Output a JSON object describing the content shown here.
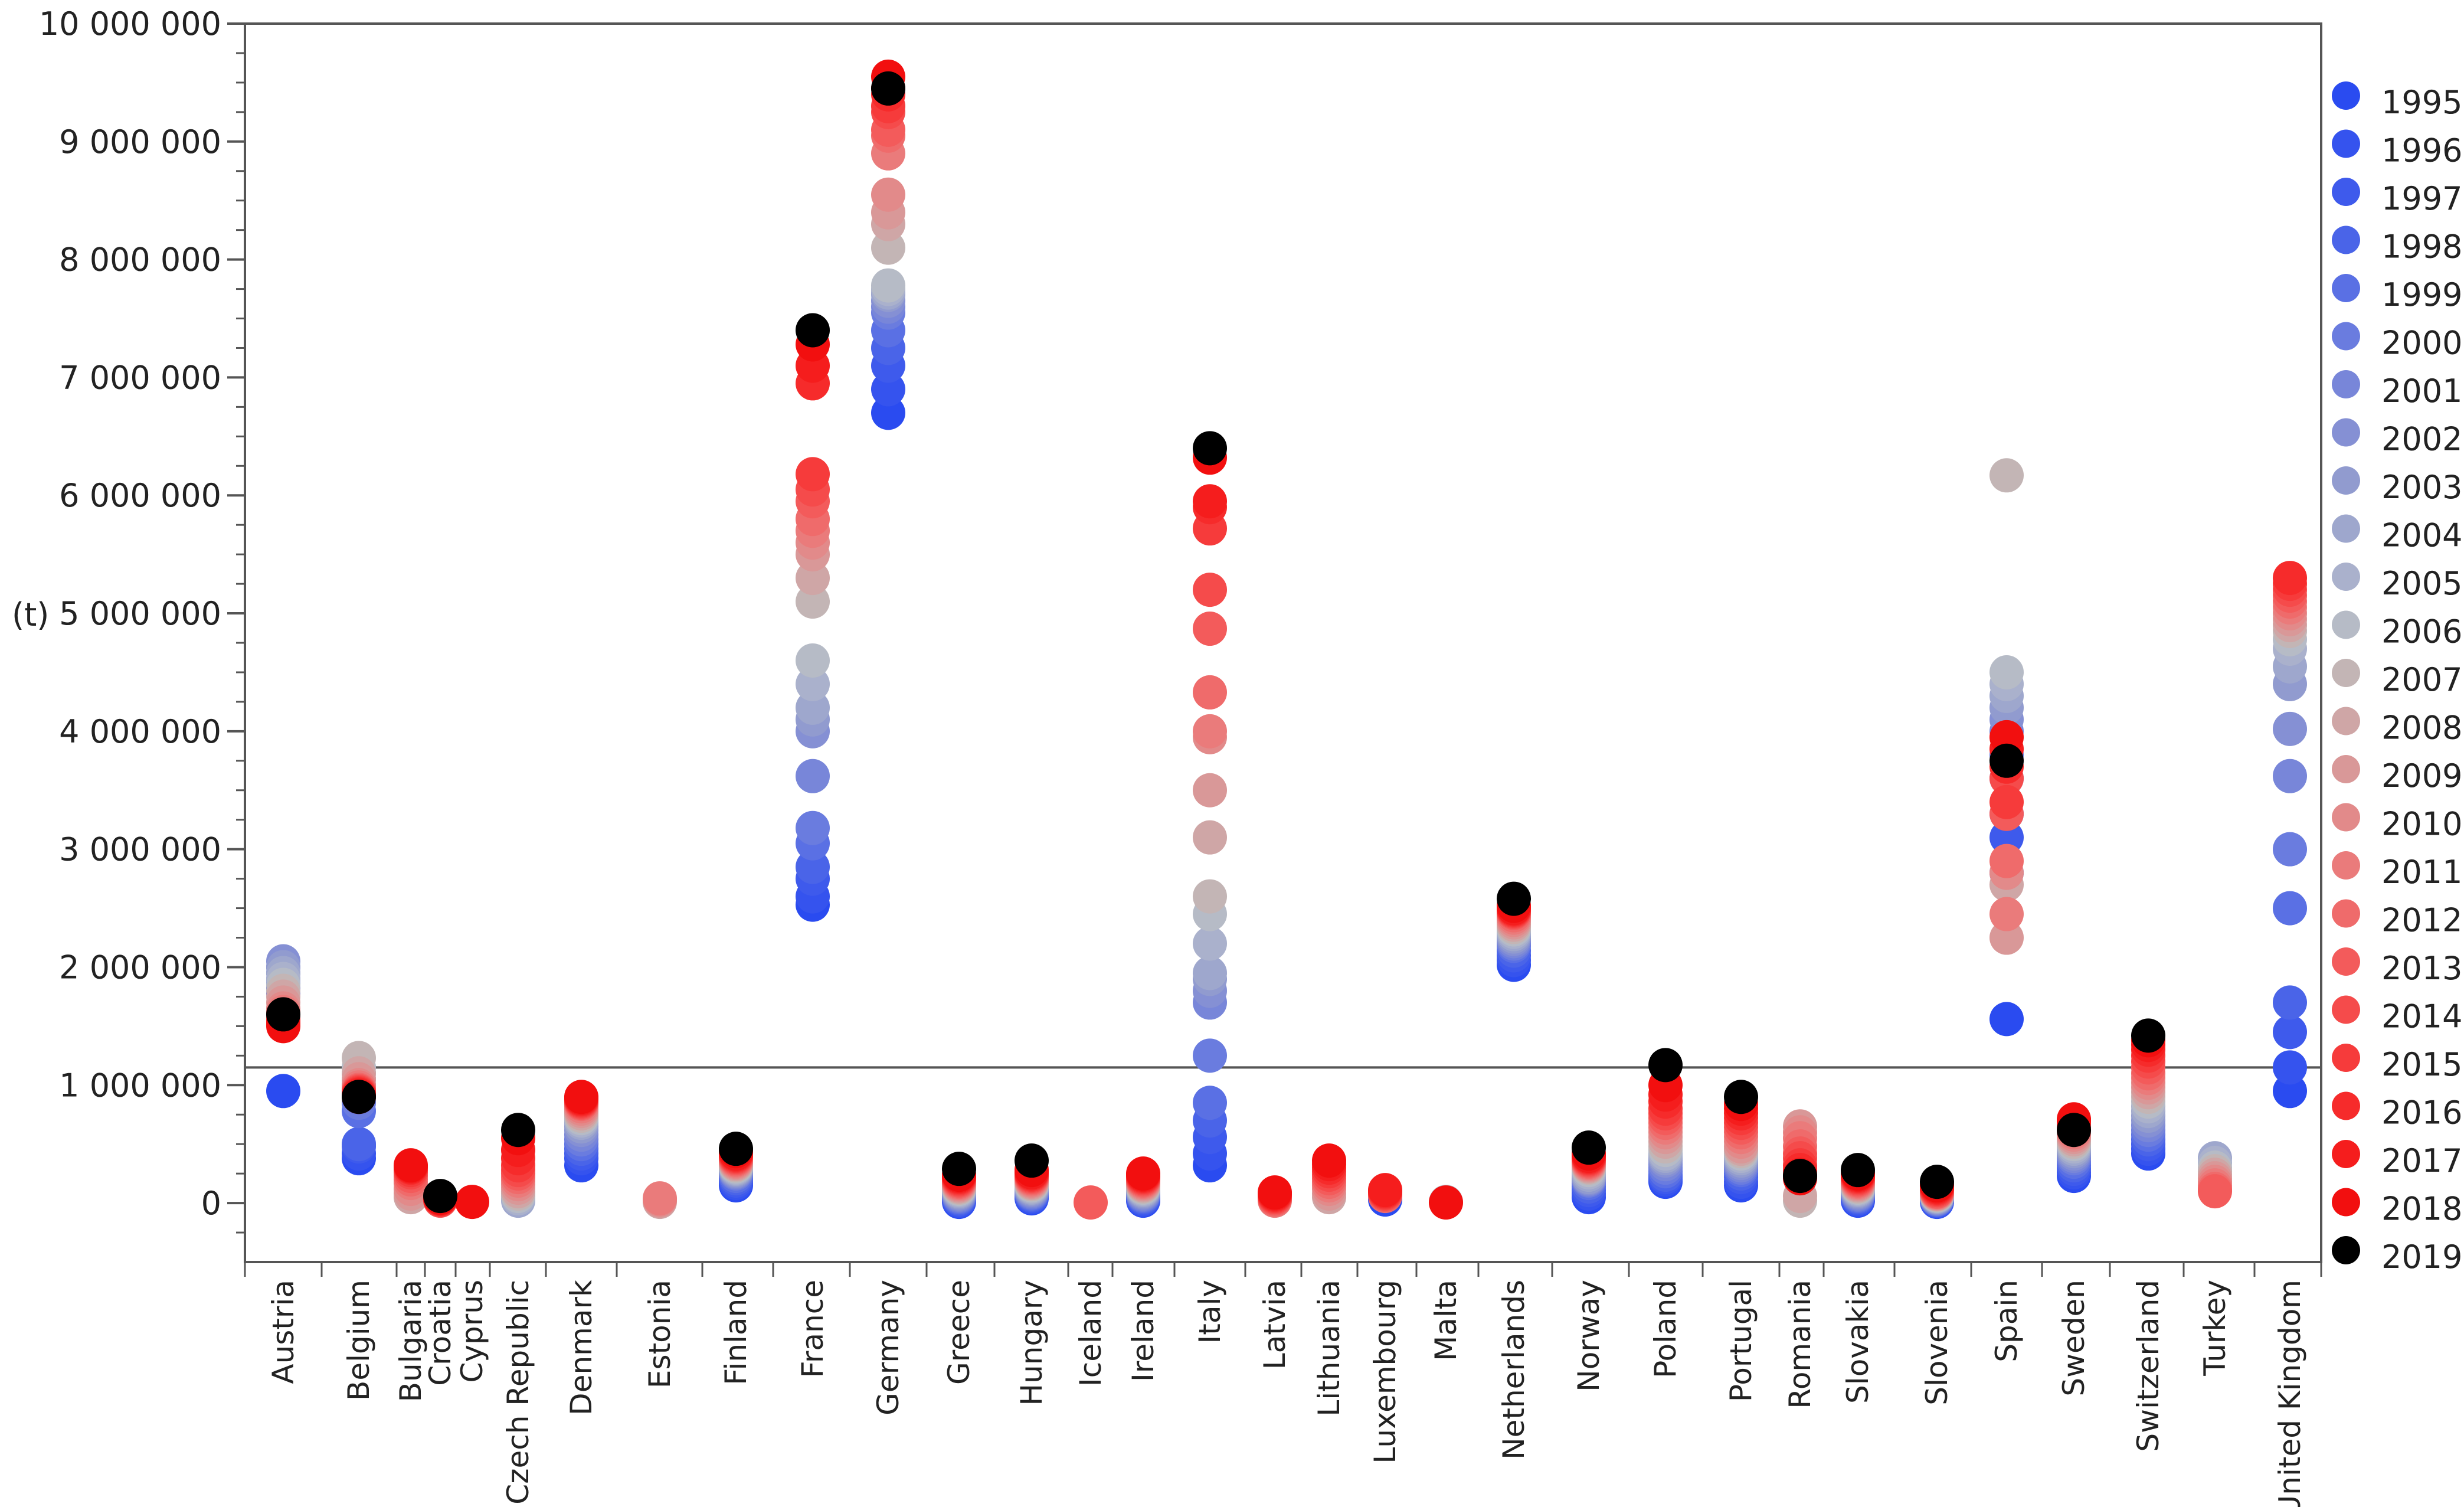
{
  "chart_data": {
    "type": "scatter",
    "title": "",
    "ylabel": "(t)",
    "xlabel": "",
    "ylim": [
      -500000,
      10000000
    ],
    "y_tick_labels": [
      "10 000 000",
      "9 000 000",
      "8 000 000",
      "7 000 000",
      "6 000 000",
      "5 000 000",
      "4 000 000",
      "3 000 000",
      "2 000 000",
      "1 000 000",
      "0"
    ],
    "y_ticks": [
      10000000,
      9000000,
      8000000,
      7000000,
      6000000,
      5000000,
      4000000,
      3000000,
      2000000,
      1000000,
      0
    ],
    "reference_line": 1150000,
    "legend_position": "right",
    "years": [
      "1995",
      "1996",
      "1997",
      "1998",
      "1999",
      "2000",
      "2001",
      "2002",
      "2003",
      "2004",
      "2005",
      "2006",
      "2007",
      "2008",
      "2009",
      "2010",
      "2011",
      "2012",
      "2013",
      "2014",
      "2015",
      "2016",
      "2017",
      "2018",
      "2019"
    ],
    "year_colors": [
      "#2a4bf0",
      "#3553ee",
      "#3e5aec",
      "#4a64e8",
      "#5a70e4",
      "#6a7cdf",
      "#7886d9",
      "#8590d4",
      "#919bcf",
      "#9ea7cd",
      "#aab1cc",
      "#b6bbc6",
      "#c3b5b5",
      "#cfa6a6",
      "#d99898",
      "#e28a8a",
      "#ea7b7b",
      "#ef6b6b",
      "#f35b5b",
      "#f54b4b",
      "#f63b3b",
      "#f62b2b",
      "#f51d1d",
      "#f20f0f",
      "#000000"
    ],
    "categories": [
      {
        "name": "Austria",
        "values": [
          950000,
          1780000,
          1820000,
          1860000,
          1900000,
          1950000,
          2000000,
          2050000,
          2000000,
          1950000,
          1900000,
          1850000,
          1800000,
          1750000,
          1700000,
          1650000,
          1620000,
          1600000,
          1580000,
          1560000,
          1550000,
          1540000,
          1520000,
          1500000,
          1600000
        ]
      },
      {
        "name": "Belgium",
        "values": [
          380000,
          420000,
          480000,
          500000,
          780000,
          850000,
          900000,
          950000,
          1000000,
          1050000,
          1100000,
          1150000,
          1230000,
          1100000,
          1050000,
          1000000,
          980000,
          960000,
          950000,
          940000,
          930000,
          920000,
          910000,
          900000,
          900000
        ]
      },
      {
        "name": "Bulgaria",
        "values": [
          null,
          null,
          null,
          null,
          null,
          null,
          null,
          null,
          null,
          null,
          null,
          null,
          null,
          50000,
          80000,
          120000,
          170000,
          200000,
          230000,
          260000,
          280000,
          300000,
          310000,
          320000,
          null
        ]
      },
      {
        "name": "Croatia",
        "values": [
          null,
          null,
          null,
          null,
          null,
          null,
          null,
          null,
          null,
          null,
          null,
          null,
          null,
          null,
          null,
          null,
          null,
          null,
          20000,
          25000,
          30000,
          35000,
          40000,
          45000,
          60000
        ]
      },
      {
        "name": "Cyprus",
        "values": [
          null,
          null,
          null,
          null,
          null,
          null,
          null,
          null,
          null,
          null,
          null,
          null,
          null,
          null,
          null,
          null,
          null,
          null,
          null,
          null,
          null,
          null,
          null,
          10000,
          null
        ]
      },
      {
        "name": "Czech Republic",
        "values": [
          null,
          null,
          null,
          null,
          null,
          null,
          null,
          null,
          null,
          20000,
          40000,
          60000,
          80000,
          100000,
          130000,
          160000,
          190000,
          220000,
          250000,
          280000,
          320000,
          380000,
          450000,
          550000,
          620000
        ]
      },
      {
        "name": "Denmark",
        "values": [
          320000,
          380000,
          420000,
          460000,
          500000,
          540000,
          580000,
          620000,
          650000,
          680000,
          700000,
          720000,
          740000,
          760000,
          780000,
          800000,
          820000,
          840000,
          850000,
          860000,
          870000,
          880000,
          890000,
          900000,
          null
        ]
      },
      {
        "name": "Estonia",
        "values": [
          null,
          null,
          null,
          null,
          null,
          null,
          null,
          null,
          null,
          null,
          null,
          null,
          null,
          10000,
          20000,
          30000,
          40000,
          null,
          null,
          null,
          null,
          null,
          null,
          null,
          null
        ]
      },
      {
        "name": "Finland",
        "values": [
          150000,
          170000,
          190000,
          210000,
          230000,
          250000,
          260000,
          270000,
          280000,
          290000,
          300000,
          310000,
          320000,
          330000,
          340000,
          350000,
          360000,
          370000,
          380000,
          390000,
          400000,
          410000,
          420000,
          440000,
          460000
        ]
      },
      {
        "name": "France",
        "values": [
          2530000,
          2600000,
          2750000,
          2850000,
          3050000,
          3180000,
          3620000,
          4000000,
          4100000,
          4200000,
          4400000,
          4600000,
          5100000,
          5300000,
          5500000,
          5600000,
          5700000,
          5800000,
          5950000,
          6050000,
          6180000,
          6950000,
          7100000,
          7280000,
          7400000
        ]
      },
      {
        "name": "Germany",
        "values": [
          6700000,
          6900000,
          7100000,
          7250000,
          7400000,
          7550000,
          7600000,
          7650000,
          7700000,
          7720000,
          7750000,
          7780000,
          8100000,
          8300000,
          8400000,
          8550000,
          8900000,
          9050000,
          9100000,
          9250000,
          9300000,
          9400000,
          9450000,
          9550000,
          9450000
        ]
      },
      {
        "name": "Greece",
        "values": [
          10000,
          20000,
          30000,
          40000,
          50000,
          60000,
          70000,
          80000,
          90000,
          100000,
          110000,
          120000,
          130000,
          140000,
          150000,
          160000,
          170000,
          180000,
          190000,
          200000,
          210000,
          220000,
          230000,
          240000,
          290000
        ]
      },
      {
        "name": "Hungary",
        "values": [
          40000,
          50000,
          60000,
          70000,
          80000,
          90000,
          100000,
          110000,
          120000,
          130000,
          140000,
          150000,
          160000,
          170000,
          180000,
          190000,
          200000,
          210000,
          220000,
          230000,
          240000,
          250000,
          260000,
          280000,
          360000
        ]
      },
      {
        "name": "Iceland",
        "values": [
          null,
          null,
          null,
          null,
          null,
          null,
          null,
          null,
          null,
          null,
          null,
          null,
          null,
          null,
          null,
          null,
          null,
          null,
          5000,
          null,
          null,
          null,
          null,
          null,
          null
        ]
      },
      {
        "name": "Ireland",
        "values": [
          20000,
          30000,
          40000,
          50000,
          60000,
          70000,
          80000,
          90000,
          100000,
          110000,
          120000,
          130000,
          140000,
          150000,
          160000,
          170000,
          180000,
          190000,
          200000,
          210000,
          220000,
          230000,
          240000,
          250000,
          null
        ]
      },
      {
        "name": "Italy",
        "values": [
          320000,
          420000,
          560000,
          700000,
          850000,
          1250000,
          1700000,
          1800000,
          1900000,
          1950000,
          2200000,
          2450000,
          2600000,
          3100000,
          3500000,
          3950000,
          4000000,
          4330000,
          4870000,
          5200000,
          5720000,
          5900000,
          5950000,
          6320000,
          6400000
        ]
      },
      {
        "name": "Latvia",
        "values": [
          null,
          null,
          null,
          null,
          null,
          null,
          null,
          null,
          null,
          null,
          null,
          null,
          null,
          null,
          null,
          null,
          20000,
          30000,
          40000,
          50000,
          60000,
          70000,
          80000,
          90000,
          null
        ]
      },
      {
        "name": "Lithuania",
        "values": [
          null,
          null,
          null,
          null,
          null,
          null,
          null,
          null,
          null,
          null,
          null,
          null,
          null,
          50000,
          80000,
          120000,
          150000,
          180000,
          210000,
          240000,
          270000,
          300000,
          330000,
          360000,
          null
        ]
      },
      {
        "name": "Luxembourg",
        "values": [
          30000,
          null,
          null,
          null,
          null,
          null,
          null,
          null,
          null,
          null,
          null,
          null,
          null,
          null,
          null,
          null,
          null,
          60000,
          70000,
          80000,
          90000,
          100000,
          110000,
          null,
          null
        ]
      },
      {
        "name": "Malta",
        "values": [
          null,
          null,
          null,
          null,
          null,
          null,
          null,
          null,
          null,
          null,
          null,
          10000,
          null,
          null,
          null,
          null,
          null,
          null,
          null,
          null,
          null,
          null,
          null,
          5000,
          null
        ]
      },
      {
        "name": "Netherlands",
        "values": [
          2020000,
          2060000,
          2100000,
          2140000,
          2180000,
          2200000,
          2220000,
          2240000,
          2260000,
          2280000,
          2300000,
          2320000,
          2340000,
          2360000,
          2380000,
          2400000,
          2420000,
          2440000,
          2460000,
          2470000,
          2480000,
          2490000,
          2500000,
          2520000,
          2580000
        ]
      },
      {
        "name": "Norway",
        "values": [
          50000,
          80000,
          110000,
          140000,
          170000,
          190000,
          200000,
          210000,
          220000,
          240000,
          260000,
          280000,
          300000,
          310000,
          320000,
          330000,
          340000,
          350000,
          360000,
          370000,
          380000,
          390000,
          400000,
          420000,
          470000
        ]
      },
      {
        "name": "Poland",
        "values": [
          180000,
          200000,
          220000,
          240000,
          270000,
          300000,
          330000,
          360000,
          380000,
          400000,
          420000,
          450000,
          480000,
          520000,
          560000,
          600000,
          640000,
          680000,
          720000,
          760000,
          800000,
          860000,
          920000,
          1000000,
          1170000
        ]
      },
      {
        "name": "Portugal",
        "values": [
          150000,
          180000,
          220000,
          250000,
          280000,
          300000,
          320000,
          340000,
          360000,
          380000,
          400000,
          420000,
          440000,
          460000,
          480000,
          520000,
          560000,
          600000,
          640000,
          680000,
          720000,
          760000,
          800000,
          840000,
          900000
        ]
      },
      {
        "name": "Romania",
        "values": [
          null,
          null,
          null,
          null,
          null,
          null,
          null,
          null,
          null,
          null,
          null,
          null,
          20000,
          60000,
          650000,
          600000,
          550000,
          480000,
          420000,
          380000,
          320000,
          280000,
          240000,
          210000,
          230000
        ]
      },
      {
        "name": "Slovakia",
        "values": [
          20000,
          30000,
          40000,
          50000,
          60000,
          70000,
          80000,
          90000,
          100000,
          110000,
          120000,
          130000,
          140000,
          150000,
          160000,
          170000,
          180000,
          190000,
          200000,
          210000,
          220000,
          230000,
          240000,
          250000,
          280000
        ]
      },
      {
        "name": "Slovenia",
        "values": [
          10000,
          15000,
          20000,
          25000,
          30000,
          35000,
          40000,
          45000,
          50000,
          55000,
          60000,
          65000,
          70000,
          75000,
          80000,
          85000,
          90000,
          95000,
          100000,
          110000,
          120000,
          130000,
          140000,
          150000,
          180000
        ]
      },
      {
        "name": "Spain",
        "values": [
          1560000,
          2800000,
          3100000,
          3300000,
          3600000,
          3800000,
          4000000,
          4100000,
          4200000,
          4300000,
          4400000,
          4500000,
          6170000,
          2700000,
          2250000,
          2800000,
          2450000,
          2900000,
          3300000,
          3600000,
          3400000,
          3700000,
          3850000,
          3950000,
          3750000
        ]
      },
      {
        "name": "Sweden",
        "values": [
          230000,
          260000,
          290000,
          320000,
          350000,
          380000,
          400000,
          420000,
          440000,
          460000,
          480000,
          500000,
          520000,
          540000,
          560000,
          580000,
          600000,
          620000,
          640000,
          660000,
          680000,
          690000,
          700000,
          710000,
          620000
        ]
      },
      {
        "name": "Switzerland",
        "values": [
          420000,
          460000,
          500000,
          540000,
          580000,
          620000,
          660000,
          700000,
          740000,
          780000,
          820000,
          860000,
          900000,
          940000,
          980000,
          1020000,
          1060000,
          1100000,
          1150000,
          1200000,
          1250000,
          1300000,
          1340000,
          1380000,
          1420000
        ]
      },
      {
        "name": "Turkey",
        "values": [
          null,
          null,
          null,
          null,
          null,
          null,
          null,
          null,
          null,
          380000,
          340000,
          300000,
          270000,
          240000,
          210000,
          180000,
          150000,
          120000,
          100000,
          null,
          null,
          null,
          null,
          null,
          null
        ]
      },
      {
        "name": "United Kingdom",
        "values": [
          950000,
          1150000,
          1450000,
          1700000,
          2500000,
          3000000,
          3620000,
          4020000,
          4400000,
          4550000,
          4700000,
          4780000,
          4850000,
          4900000,
          4950000,
          5000000,
          5050000,
          5100000,
          5150000,
          5200000,
          5250000,
          5300000,
          null,
          null,
          null
        ]
      }
    ]
  }
}
